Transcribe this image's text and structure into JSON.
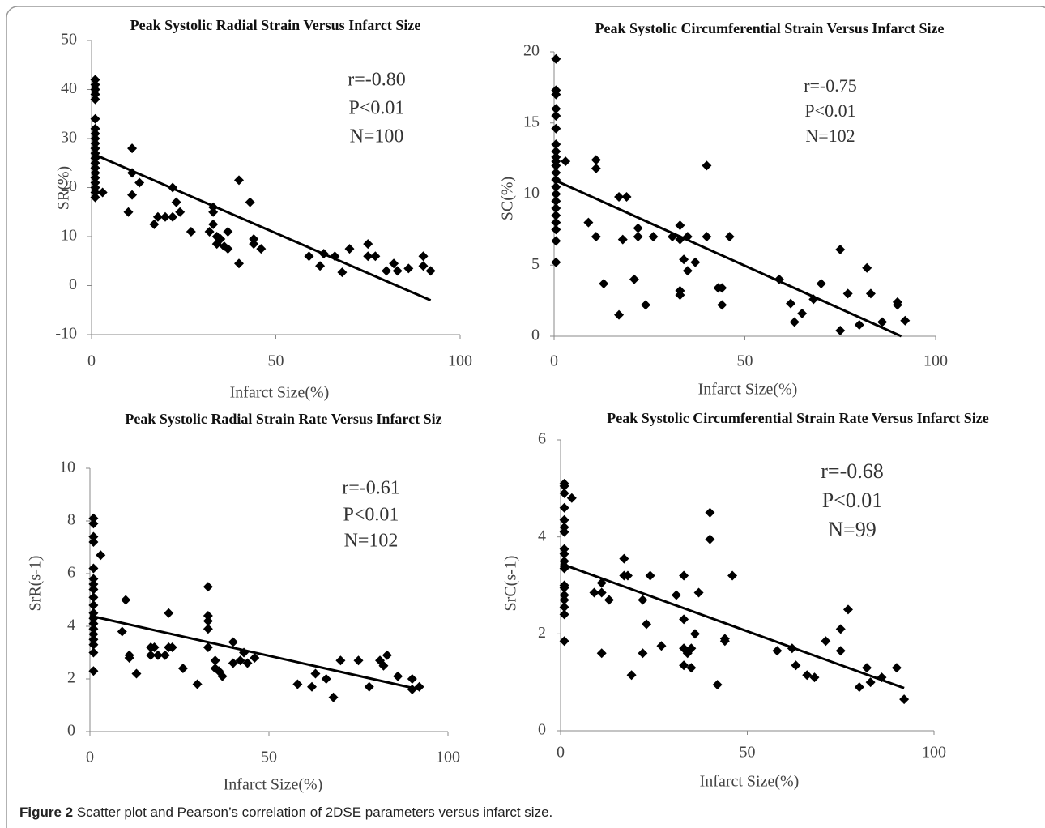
{
  "chart_data": [
    {
      "type": "scatter",
      "title": "Peak Systolic Radial Strain Versus Infarct Size",
      "x_label": "Infarct Size(%)",
      "y_label": "SR(%)",
      "annotations": [
        "r=-0.80",
        "P<0.01",
        "N=100"
      ],
      "marker_color": "#000000",
      "xlim": [
        0,
        100
      ],
      "xticks": [
        0,
        50,
        100
      ],
      "ylim": [
        -10,
        50
      ],
      "yticks": [
        -10,
        0,
        10,
        20,
        30,
        40,
        50
      ],
      "x": [
        1,
        1,
        1,
        1,
        1,
        1,
        1,
        1,
        1,
        1,
        1,
        1,
        1,
        1,
        1,
        1,
        1,
        1,
        1,
        1,
        1,
        3,
        10,
        11,
        11,
        11,
        13,
        17,
        18,
        20,
        22,
        22,
        23,
        24,
        27,
        32,
        33,
        33,
        33,
        34,
        34,
        35,
        36,
        37,
        37,
        40,
        40,
        43,
        44,
        44,
        46,
        59,
        62,
        63,
        66,
        68,
        70,
        75,
        75,
        77,
        80,
        82,
        83,
        86,
        90,
        90,
        92
      ],
      "values": [
        42,
        41,
        40,
        39,
        38,
        34,
        32,
        31,
        30,
        29,
        28,
        27,
        26,
        25,
        24,
        23,
        22,
        21,
        20,
        19,
        18,
        19,
        15,
        23,
        18.5,
        28,
        21,
        12.5,
        14,
        14,
        20,
        14,
        17,
        15,
        11,
        11,
        16,
        15,
        12.5,
        10,
        8.5,
        9.5,
        8,
        7.5,
        11,
        21.5,
        4.5,
        17,
        9.5,
        8.5,
        7.5,
        6,
        4,
        6.5,
        6,
        2.7,
        7.5,
        8.5,
        6,
        6,
        3,
        4.5,
        3,
        3.5,
        6,
        4,
        3
      ],
      "trend_line": {
        "x": [
          0,
          92
        ],
        "y": [
          27,
          -3
        ]
      }
    },
    {
      "type": "scatter",
      "title": "Peak Systolic Circumferential Strain Versus Infarct Size",
      "x_label": "Infarct Size(%)",
      "y_label": "SC(%)",
      "annotations": [
        "r=-0.75",
        "P<0.01",
        "N=102"
      ],
      "marker_color": "#000000",
      "xlim": [
        0,
        100
      ],
      "xticks": [
        0,
        50,
        100
      ],
      "ylim": [
        0,
        20
      ],
      "yticks": [
        0,
        5,
        10,
        15,
        20
      ],
      "x": [
        0.5,
        0.5,
        0.5,
        0.5,
        0.5,
        0.5,
        0.5,
        0.5,
        0.5,
        0.5,
        0.5,
        0.5,
        0.5,
        0.5,
        0.5,
        0.5,
        0.5,
        0.5,
        0.5,
        0.5,
        0.5,
        0.5,
        3,
        9,
        11,
        11,
        11,
        13,
        17,
        17,
        18,
        19,
        21,
        22,
        22,
        24,
        26,
        31,
        33,
        33,
        33,
        33,
        34,
        35,
        35,
        37,
        40,
        40,
        43,
        44,
        44,
        46,
        59,
        62,
        63,
        65,
        68,
        70,
        75,
        75,
        77,
        80,
        82,
        83,
        86,
        90,
        90,
        92
      ],
      "values": [
        19.5,
        17.3,
        17,
        16,
        15.5,
        14.6,
        13.5,
        13,
        12.6,
        12.3,
        12,
        11.5,
        11,
        10.5,
        10,
        9.5,
        9,
        8.5,
        8,
        7.5,
        6.7,
        5.2,
        12.3,
        8,
        12.4,
        11.8,
        7,
        3.7,
        1.5,
        9.8,
        6.8,
        9.8,
        4,
        7.6,
        7,
        2.2,
        7,
        7,
        7.8,
        6.8,
        3.2,
        2.9,
        5.4,
        4.6,
        7,
        5.2,
        12,
        7,
        3.4,
        3.4,
        2.2,
        7,
        4,
        2.3,
        1,
        1.6,
        2.6,
        3.7,
        6.1,
        0.4,
        3,
        0.8,
        4.8,
        3,
        1,
        2.2,
        2.4,
        1.1
      ],
      "trend_line": {
        "x": [
          0,
          91
        ],
        "y": [
          11,
          0
        ]
      }
    },
    {
      "type": "scatter",
      "title": "Peak Systolic Radial Strain Rate Versus Infarct Siz",
      "x_label": "Infarct Size(%)",
      "y_label": "SrR(s-1)",
      "annotations": [
        "r=-0.61",
        "P<0.01",
        "N=102"
      ],
      "marker_color": "#000000",
      "xlim": [
        0,
        100
      ],
      "xticks": [
        0,
        50,
        100
      ],
      "ylim": [
        0,
        10
      ],
      "yticks": [
        0,
        2,
        4,
        6,
        8,
        10
      ],
      "x": [
        1,
        1,
        1,
        1,
        1,
        1,
        1,
        1,
        1,
        1,
        1,
        1,
        1,
        1,
        1,
        1,
        1,
        1,
        1,
        3,
        9,
        10,
        11,
        11,
        13,
        17,
        17,
        18,
        19,
        21,
        22,
        22,
        23,
        26,
        30,
        33,
        33,
        33,
        33,
        33,
        35,
        35,
        36,
        37,
        40,
        40,
        42,
        43,
        44,
        46,
        58,
        62,
        63,
        66,
        68,
        70,
        75,
        78,
        81,
        82,
        83,
        86,
        90,
        90,
        92
      ],
      "values": [
        8.1,
        7.9,
        7.4,
        7.2,
        6.2,
        5.8,
        5.6,
        5.4,
        5.1,
        4.8,
        4.5,
        4.3,
        4.1,
        3.9,
        3.7,
        3.5,
        3.3,
        3.0,
        2.3,
        6.7,
        3.8,
        5,
        2.9,
        2.8,
        2.2,
        3.2,
        2.9,
        3.2,
        2.9,
        2.9,
        4.5,
        3.2,
        3.2,
        2.4,
        1.8,
        5.5,
        4.4,
        4.2,
        3.9,
        3.2,
        2.7,
        2.4,
        2.3,
        2.1,
        3.4,
        2.6,
        2.7,
        3,
        2.6,
        2.8,
        1.8,
        1.7,
        2.2,
        2,
        1.3,
        2.7,
        2.7,
        1.7,
        2.7,
        2.5,
        2.9,
        2.1,
        2,
        1.6,
        1.7
      ],
      "trend_line": {
        "x": [
          0,
          92
        ],
        "y": [
          4.4,
          1.6
        ]
      }
    },
    {
      "type": "scatter",
      "title": "Peak Systolic Circumferential Strain Rate Versus Infarct Size",
      "x_label": "Infarct Size(%)",
      "y_label": "SrC(s-1)",
      "annotations": [
        "r=-0.68",
        "P<0.01",
        "N=99"
      ],
      "marker_color": "#000000",
      "xlim": [
        0,
        100
      ],
      "xticks": [
        0,
        50,
        100
      ],
      "ylim": [
        0,
        6
      ],
      "yticks": [
        0,
        2,
        4,
        6
      ],
      "x": [
        1,
        1,
        1,
        1,
        1,
        1,
        1,
        1,
        1,
        1,
        1,
        1,
        1,
        1,
        1,
        1,
        1,
        1,
        1,
        3,
        9,
        11,
        11,
        11,
        13,
        17,
        17,
        18,
        19,
        22,
        22,
        23,
        24,
        27,
        31,
        33,
        33,
        33,
        33,
        34,
        35,
        35,
        36,
        37,
        40,
        40,
        42,
        44,
        44,
        46,
        58,
        62,
        63,
        66,
        68,
        71,
        75,
        75,
        77,
        80,
        82,
        83,
        86,
        90,
        92
      ],
      "values": [
        5.1,
        5.05,
        4.9,
        4.6,
        4.35,
        4.2,
        4.1,
        3.75,
        3.65,
        3.5,
        3.4,
        3.35,
        3.0,
        2.95,
        2.8,
        2.7,
        2.55,
        2.4,
        1.85,
        4.8,
        2.85,
        3.05,
        2.85,
        1.6,
        2.7,
        3.55,
        3.2,
        3.2,
        1.15,
        2.7,
        1.6,
        2.2,
        3.2,
        1.75,
        2.8,
        3.2,
        2.3,
        1.7,
        1.35,
        1.6,
        1.7,
        1.3,
        2.0,
        2.85,
        4.5,
        3.95,
        0.95,
        1.9,
        1.85,
        3.2,
        1.65,
        1.7,
        1.35,
        1.15,
        1.1,
        1.85,
        2.1,
        1.65,
        2.5,
        0.9,
        1.3,
        1,
        1.1,
        1.3,
        0.65
      ],
      "trend_line": {
        "x": [
          0,
          92
        ],
        "y": [
          3.45,
          0.88
        ]
      }
    }
  ],
  "caption": {
    "label": "Figure 2",
    "text": " Scatter plot and Pearson’s correlation of 2DSE parameters versus infarct size."
  }
}
